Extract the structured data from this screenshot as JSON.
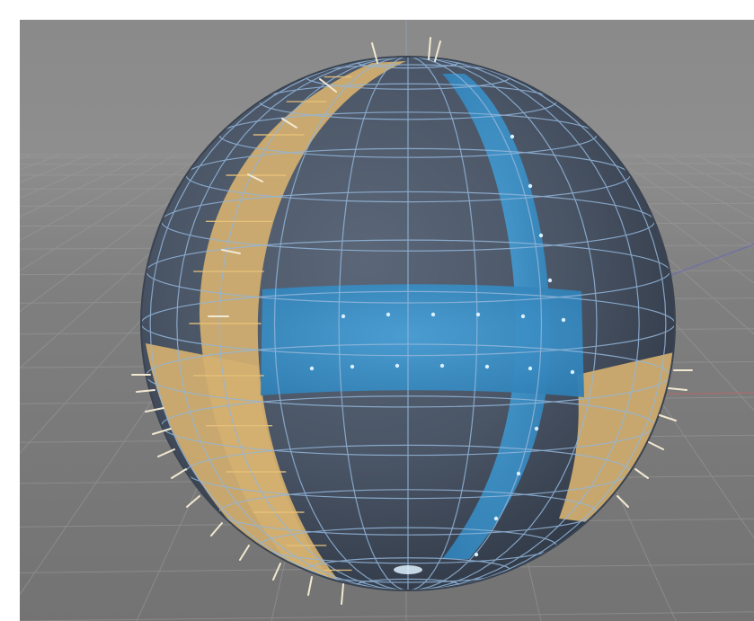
{
  "viewport": {
    "background_top": "#8a8a8a",
    "background_bottom": "#737373",
    "grid_color": "#9a9a9a",
    "axis_x_color": "#b35a5a",
    "axis_z_color": "#5a5ab3"
  },
  "sphere": {
    "object": "sphere",
    "mesh_color": "#4e5a6b",
    "wire_color": "#8fb3d9",
    "selected_faces_blue": "#3a8fc4",
    "selected_faces_orange": "#d9b36b",
    "normals_color": "#efe6cf"
  }
}
